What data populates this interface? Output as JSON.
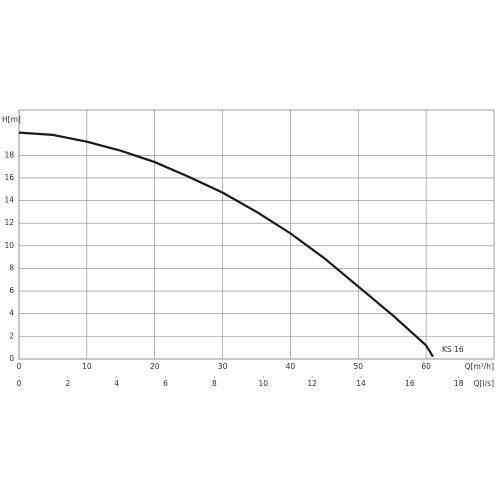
{
  "chart_data": {
    "type": "line",
    "y_label": "H[m]",
    "x_label": "Q[m³/h]",
    "x2_label": "Q[l/s]",
    "x": [
      0,
      5,
      10,
      15,
      20,
      25,
      30,
      35,
      40,
      45,
      50,
      55,
      60,
      61
    ],
    "series": [
      {
        "name": "KS 16",
        "color": "#1a1a1a",
        "values": [
          20,
          19.8,
          19.2,
          18.4,
          17.4,
          16.1,
          14.7,
          13.0,
          11.1,
          8.9,
          6.4,
          3.9,
          1.2,
          0.2
        ]
      }
    ],
    "xlim": [
      0,
      70
    ],
    "xticks": [
      0,
      10,
      20,
      30,
      40,
      50,
      60
    ],
    "x2lim": [
      0,
      19.444
    ],
    "x2ticks": [
      0,
      2,
      4,
      6,
      8,
      10,
      12,
      14,
      16,
      18
    ],
    "ylim": [
      0,
      22
    ],
    "yticks": [
      0,
      2,
      4,
      6,
      8,
      10,
      12,
      14,
      16,
      18
    ],
    "grid": true
  }
}
